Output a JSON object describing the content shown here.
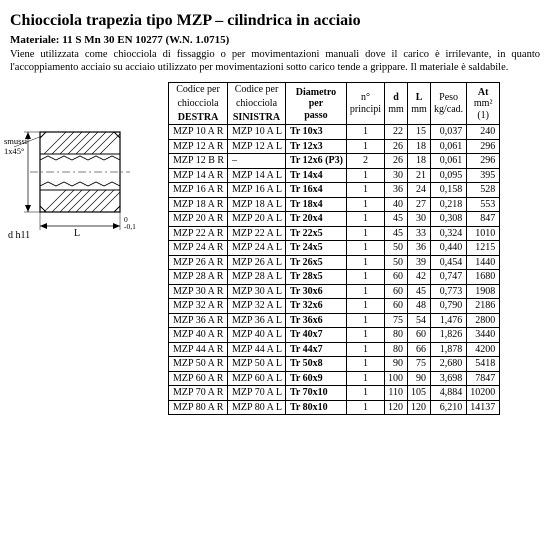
{
  "title": "Chiocciola trapezia tipo MZP – cilindrica in acciaio",
  "material_label": "Materiale: 11 S Mn 30 EN 10277  (W.N. 1.0715)",
  "description": "Viene utilizzata come chiocciola di fissaggio o per movimentazioni manuali dove il carico è irrilevante, in quanto l'accoppiamento acciaio su acciaio utilizzato per movimentazioni sotto carico tende a grippare. Il materiale è saldabile.",
  "diagram": {
    "chamfer_label": "smussi 1x45°",
    "d_label": "d h11",
    "L_label": "L",
    "L_tol": "0\n-0,1"
  },
  "headers": {
    "col1a": "Codice per",
    "col1b": "chiocciola",
    "col1c": "DESTRA",
    "col2a": "Codice per",
    "col2b": "chiocciola",
    "col2c": "SINISTRA",
    "col3a": "Diametro",
    "col3b": "per",
    "col3c": "passo",
    "col4a": "n°",
    "col4b": "principi",
    "col5a": "d",
    "col5b": "mm",
    "col6a": "L",
    "col6b": "mm",
    "col7a": "Peso",
    "col7b": "kg/cad.",
    "col8a": "At",
    "col8b": "mm²",
    "col8c": "(1)"
  },
  "rows": [
    {
      "r": "MZP 10 A R",
      "l": "MZP 10 A L",
      "dp": "Tr 10x3",
      "n": "1",
      "d": "22",
      "L": "15",
      "p": "0,037",
      "at": "240"
    },
    {
      "r": "MZP 12 A R",
      "l": "MZP 12 A L",
      "dp": "Tr 12x3",
      "n": "1",
      "d": "26",
      "L": "18",
      "p": "0,061",
      "at": "296"
    },
    {
      "r": "MZP 12 B R",
      "l": "–",
      "dp": "Tr 12x6 (P3)",
      "n": "2",
      "d": "26",
      "L": "18",
      "p": "0,061",
      "at": "296"
    },
    {
      "r": "MZP 14 A R",
      "l": "MZP 14 A L",
      "dp": "Tr 14x4",
      "n": "1",
      "d": "30",
      "L": "21",
      "p": "0,095",
      "at": "395"
    },
    {
      "r": "MZP 16 A R",
      "l": "MZP 16 A L",
      "dp": "Tr 16x4",
      "n": "1",
      "d": "36",
      "L": "24",
      "p": "0,158",
      "at": "528"
    },
    {
      "r": "MZP 18 A R",
      "l": "MZP 18 A L",
      "dp": "Tr 18x4",
      "n": "1",
      "d": "40",
      "L": "27",
      "p": "0,218",
      "at": "553"
    },
    {
      "r": "MZP 20 A R",
      "l": "MZP 20 A L",
      "dp": "Tr 20x4",
      "n": "1",
      "d": "45",
      "L": "30",
      "p": "0,308",
      "at": "847"
    },
    {
      "r": "MZP 22 A R",
      "l": "MZP 22 A L",
      "dp": "Tr 22x5",
      "n": "1",
      "d": "45",
      "L": "33",
      "p": "0,324",
      "at": "1010"
    },
    {
      "r": "MZP 24 A R",
      "l": "MZP 24 A L",
      "dp": "Tr 24x5",
      "n": "1",
      "d": "50",
      "L": "36",
      "p": "0,440",
      "at": "1215"
    },
    {
      "r": "MZP 26 A R",
      "l": "MZP 26 A L",
      "dp": "Tr 26x5",
      "n": "1",
      "d": "50",
      "L": "39",
      "p": "0,454",
      "at": "1440"
    },
    {
      "r": "MZP 28 A R",
      "l": "MZP 28 A L",
      "dp": "Tr 28x5",
      "n": "1",
      "d": "60",
      "L": "42",
      "p": "0,747",
      "at": "1680"
    },
    {
      "r": "MZP 30 A R",
      "l": "MZP 30 A L",
      "dp": "Tr 30x6",
      "n": "1",
      "d": "60",
      "L": "45",
      "p": "0,773",
      "at": "1908"
    },
    {
      "r": "MZP 32 A R",
      "l": "MZP 32 A L",
      "dp": "Tr 32x6",
      "n": "1",
      "d": "60",
      "L": "48",
      "p": "0,790",
      "at": "2186"
    },
    {
      "r": "MZP 36 A R",
      "l": "MZP 36 A L",
      "dp": "Tr 36x6",
      "n": "1",
      "d": "75",
      "L": "54",
      "p": "1,476",
      "at": "2800"
    },
    {
      "r": "MZP 40 A R",
      "l": "MZP 40 A L",
      "dp": "Tr 40x7",
      "n": "1",
      "d": "80",
      "L": "60",
      "p": "1,826",
      "at": "3440"
    },
    {
      "r": "MZP 44 A R",
      "l": "MZP 44 A L",
      "dp": "Tr 44x7",
      "n": "1",
      "d": "80",
      "L": "66",
      "p": "1,878",
      "at": "4200"
    },
    {
      "r": "MZP 50 A R",
      "l": "MZP 50 A L",
      "dp": "Tr 50x8",
      "n": "1",
      "d": "90",
      "L": "75",
      "p": "2,680",
      "at": "5418"
    },
    {
      "r": "MZP 60 A R",
      "l": "MZP 60 A L",
      "dp": "Tr 60x9",
      "n": "1",
      "d": "100",
      "L": "90",
      "p": "3,698",
      "at": "7847"
    },
    {
      "r": "MZP 70 A R",
      "l": "MZP 70 A L",
      "dp": "Tr 70x10",
      "n": "1",
      "d": "110",
      "L": "105",
      "p": "4,884",
      "at": "10200"
    },
    {
      "r": "MZP 80 A R",
      "l": "MZP 80 A L",
      "dp": "Tr 80x10",
      "n": "1",
      "d": "120",
      "L": "120",
      "p": "6,210",
      "at": "14137"
    }
  ]
}
